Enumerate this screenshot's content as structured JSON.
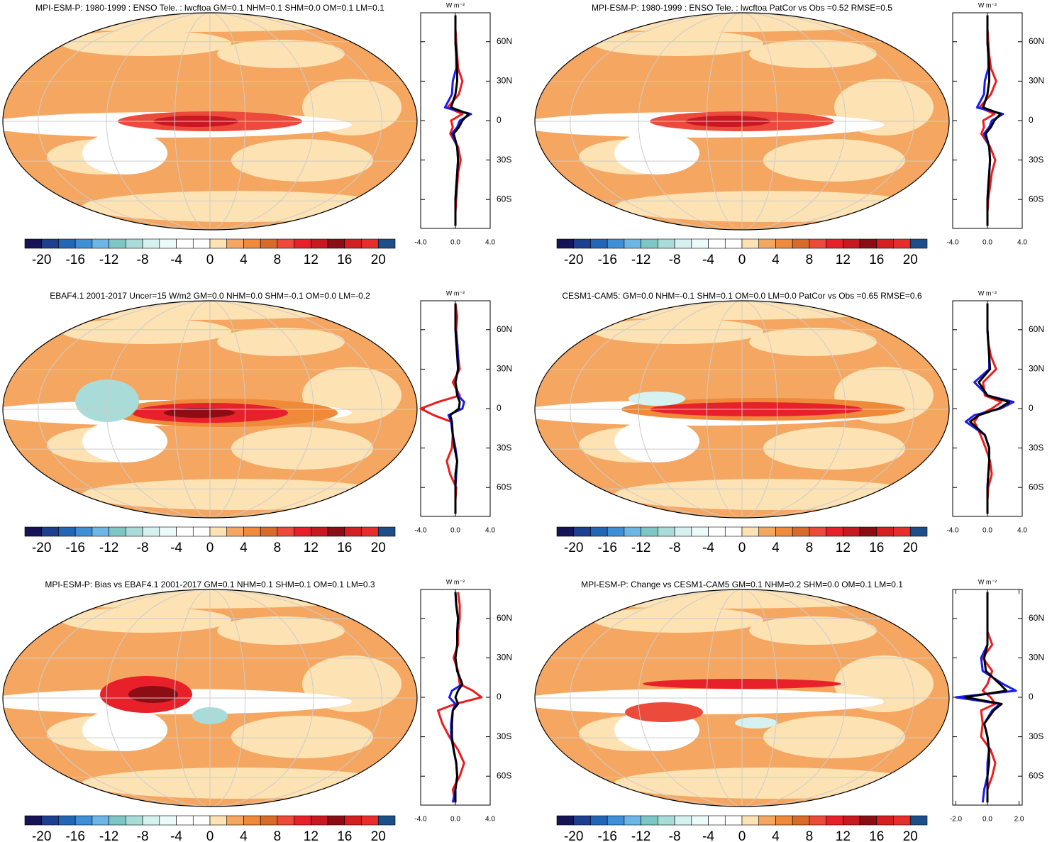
{
  "units": "W m⁻²",
  "colorbar": {
    "lim": [
      -22,
      22
    ],
    "ticks": [
      -20,
      -16,
      -12,
      -8,
      -4,
      0,
      4,
      8,
      12,
      16,
      20
    ],
    "colors": [
      "#141456",
      "#1d3f8f",
      "#2266b8",
      "#3f8fd6",
      "#6cb6e6",
      "#7cc7c4",
      "#a9dcd8",
      "#d5f2f0",
      "#ecfafa",
      "#ffffff",
      "#ffffff",
      "#fde2b4",
      "#f5a761",
      "#ee8a3a",
      "#d96b2a",
      "#ec4a3a",
      "#e8202a",
      "#c81820",
      "#8c0e14",
      "#d42020",
      "#e82d2d",
      "#1c4f8a"
    ]
  },
  "chart_data": [
    {
      "type": "line",
      "title": "MPI-ESM-P: 1980-1999 : ENSO Tele. : lwcftoa GM=0.1 NHM=0.1 SHM=0.0 OM=0.1 LM=0.1",
      "latitudes": [
        -80,
        -70,
        -60,
        -50,
        -40,
        -30,
        -20,
        -10,
        -5,
        0,
        5,
        10,
        20,
        30,
        40,
        50,
        60,
        70,
        80
      ],
      "xlim": [
        -4,
        4
      ],
      "xticks": [
        {
          "value": -4,
          "label": "-4.0"
        },
        {
          "value": 0,
          "label": "0.0"
        },
        {
          "value": 4,
          "label": "4.0"
        }
      ],
      "ylim": [
        -82,
        82
      ],
      "yticks": [
        {
          "value": -60,
          "label": "60S"
        },
        {
          "value": -30,
          "label": "30S"
        },
        0,
        {
          "value": 30,
          "label": "30N"
        },
        {
          "value": 60,
          "label": "60N"
        }
      ],
      "series": [
        {
          "color": "#ee1c1c",
          "values": [
            0,
            0,
            0.1,
            0.2,
            0.3,
            0.6,
            0.3,
            -0.6,
            -0.3,
            -0.5,
            0.8,
            -0.9,
            0.4,
            0.8,
            0.3,
            0.2,
            0.1,
            0,
            0
          ]
        },
        {
          "color": "#1c1cee",
          "values": [
            0,
            0,
            0,
            0.1,
            0.2,
            0.3,
            0.2,
            -0.4,
            0.2,
            0.5,
            1.8,
            -1.2,
            -0.4,
            -0.3,
            0.1,
            0.1,
            0,
            0,
            0
          ]
        },
        {
          "color": "#000000",
          "values": [
            0,
            0,
            0,
            0.1,
            0.2,
            0.3,
            0.2,
            -0.2,
            0.4,
            0.8,
            1.5,
            -0.5,
            0,
            0.2,
            0.2,
            0.1,
            0,
            0,
            0
          ]
        }
      ]
    },
    {
      "type": "line",
      "title": "MPI-ESM-P: 1980-1999 : ENSO Tele. : lwcftoa PatCor vs Obs =0.52 RMSE=0.5",
      "latitudes": [
        -80,
        -70,
        -60,
        -50,
        -40,
        -30,
        -20,
        -10,
        -5,
        0,
        5,
        10,
        20,
        30,
        40,
        50,
        60,
        70,
        80
      ],
      "xlim": [
        -4,
        4
      ],
      "xticks": [
        {
          "value": -4,
          "label": "-4.0"
        },
        {
          "value": 0,
          "label": "0.0"
        },
        {
          "value": 4,
          "label": "4.0"
        }
      ],
      "ylim": [
        -82,
        82
      ],
      "yticks": [
        {
          "value": -60,
          "label": "60S"
        },
        {
          "value": -30,
          "label": "30S"
        },
        0,
        {
          "value": 30,
          "label": "30N"
        },
        {
          "value": 60,
          "label": "60N"
        }
      ],
      "series": [
        {
          "color": "#ee1c1c",
          "values": [
            0,
            0,
            0.1,
            0.3,
            0.5,
            0.9,
            0.3,
            -0.7,
            -0.4,
            -0.5,
            0.8,
            -0.9,
            0.4,
            1,
            0.4,
            0.2,
            0.1,
            0,
            0
          ]
        },
        {
          "color": "#1c1cee",
          "values": [
            0,
            0,
            0,
            0.1,
            0.2,
            0.3,
            0.2,
            -0.4,
            0.2,
            0.5,
            1.8,
            -1.2,
            -0.4,
            -0.3,
            0.1,
            0.1,
            0,
            0,
            0
          ]
        },
        {
          "color": "#000000",
          "values": [
            0,
            0,
            0,
            0.1,
            0.2,
            0.3,
            0.2,
            -0.2,
            0.4,
            0.8,
            1.5,
            -0.5,
            0,
            0.2,
            0.2,
            0.1,
            0,
            0,
            0
          ]
        }
      ]
    },
    {
      "type": "line",
      "title": "EBAF4.1 2001-2017 Uncer=15 W/m2 GM=0.0 NHM=0.0 SHM=-0.1 OM=0.0 LM=-0.2",
      "latitudes": [
        -80,
        -70,
        -60,
        -50,
        -40,
        -30,
        -20,
        -10,
        -5,
        0,
        5,
        10,
        20,
        30,
        40,
        50,
        60,
        70,
        80
      ],
      "xlim": [
        -4,
        4
      ],
      "xticks": [
        {
          "value": -4,
          "label": "-4.0"
        },
        {
          "value": 0,
          "label": "0.0"
        },
        {
          "value": 4,
          "label": "4.0"
        }
      ],
      "ylim": [
        -82,
        82
      ],
      "yticks": [
        {
          "value": -60,
          "label": "60S"
        },
        {
          "value": -30,
          "label": "30S"
        },
        0,
        {
          "value": 30,
          "label": "30N"
        },
        {
          "value": 60,
          "label": "60N"
        }
      ],
      "series": [
        {
          "color": "#ee1c1c",
          "values": [
            0,
            0,
            0.1,
            -0.6,
            -1,
            -0.4,
            -0.3,
            -0.5,
            -2.5,
            -4,
            -2,
            0.5,
            -0.3,
            0.5,
            0.3,
            0.2,
            0.1,
            0.2,
            0
          ]
        },
        {
          "color": "#1c1cee",
          "values": [
            0,
            0,
            0,
            0.1,
            0.2,
            0,
            -0.3,
            -0.5,
            -0.8,
            0.8,
            1,
            0.3,
            0,
            0.3,
            0.3,
            0.2,
            0,
            0,
            0
          ]
        },
        {
          "color": "#000000",
          "values": [
            0,
            0,
            0,
            0,
            0.2,
            -0.1,
            -0.3,
            -0.4,
            -0.6,
            0.4,
            0.5,
            0.2,
            0,
            0.3,
            0.2,
            0.1,
            0,
            0,
            0
          ]
        }
      ]
    },
    {
      "type": "line",
      "title": "CESM1-CAM5: GM=0.0 NHM=-0.1 SHM=0.1 OM=0.0 LM=0.0 PatCor vs Obs =0.65 RMSE=0.6",
      "latitudes": [
        -80,
        -70,
        -60,
        -50,
        -40,
        -30,
        -20,
        -10,
        -5,
        0,
        5,
        10,
        20,
        30,
        40,
        50,
        60,
        70,
        80
      ],
      "xlim": [
        -4,
        4
      ],
      "xticks": [
        {
          "value": -4,
          "label": "-4.0"
        },
        {
          "value": 0,
          "label": "0.0"
        },
        {
          "value": 4,
          "label": "4.0"
        }
      ],
      "ylim": [
        -82,
        82
      ],
      "yticks": [
        {
          "value": -60,
          "label": "60S"
        },
        {
          "value": -30,
          "label": "30S"
        },
        0,
        {
          "value": 30,
          "label": "30N"
        },
        {
          "value": 60,
          "label": "60N"
        }
      ],
      "series": [
        {
          "color": "#ee1c1c",
          "values": [
            0,
            0,
            0.1,
            0.5,
            0.3,
            -0.2,
            -0.8,
            -1.5,
            -1,
            0.5,
            1.6,
            -0.3,
            -0.5,
            1,
            0.4,
            0.1,
            0,
            0,
            0
          ]
        },
        {
          "color": "#1c1cee",
          "values": [
            0,
            0,
            0,
            0.1,
            0.2,
            0.2,
            -0.3,
            -2.5,
            -1.5,
            1.5,
            3,
            0,
            -1.5,
            0.2,
            0.2,
            0.1,
            0,
            0,
            0
          ]
        },
        {
          "color": "#000000",
          "values": [
            0,
            0,
            0,
            0.1,
            0.2,
            0.2,
            -0.3,
            -2,
            -1,
            1.3,
            2.5,
            0,
            -1,
            0.3,
            0.2,
            0.1,
            0,
            0,
            0
          ]
        }
      ]
    },
    {
      "type": "line",
      "title": "MPI-ESM-P: Bias vs EBAF4.1 2001-2017 GM=0.1 NHM=0.1 SHM=0.1 OM=0.1 LM=0.3",
      "latitudes": [
        -80,
        -70,
        -60,
        -50,
        -40,
        -30,
        -20,
        -10,
        -5,
        0,
        5,
        10,
        20,
        30,
        40,
        50,
        60,
        70,
        80
      ],
      "xlim": [
        -4,
        4
      ],
      "xticks": [
        {
          "value": -4,
          "label": "-4.0"
        },
        {
          "value": 0,
          "label": "0.0"
        },
        {
          "value": 4,
          "label": "4.0"
        }
      ],
      "ylim": [
        -82,
        82
      ],
      "yticks": [
        {
          "value": -60,
          "label": "60S"
        },
        {
          "value": -30,
          "label": "30S"
        },
        0,
        {
          "value": 30,
          "label": "30N"
        },
        {
          "value": 60,
          "label": "60N"
        }
      ],
      "series": [
        {
          "color": "#ee1c1c",
          "values": [
            0,
            -0.3,
            0.5,
            1,
            0.3,
            -0.7,
            -1.5,
            -2,
            0,
            3,
            2,
            0.5,
            0.3,
            -0.2,
            0.3,
            0.3,
            0.5,
            0.5,
            0.3
          ]
        },
        {
          "color": "#1c1cee",
          "values": [
            -0.3,
            0,
            0.2,
            0.1,
            -0.2,
            -0.5,
            -0.5,
            -0.3,
            0,
            -0.7,
            -0.4,
            0.8,
            0.2,
            0,
            0.2,
            0.2,
            0.3,
            0.1,
            0
          ]
        },
        {
          "color": "#000000",
          "values": [
            0,
            0,
            0.2,
            0.1,
            -0.2,
            -0.4,
            -0.4,
            -0.3,
            0.3,
            0,
            0.3,
            0.8,
            0.2,
            0,
            0.2,
            0.2,
            0.3,
            0.1,
            0
          ]
        }
      ]
    },
    {
      "type": "line",
      "title": "MPI-ESM-P: Change vs CESM1-CAM5 GM=0.1 NHM=0.2 SHM=0.0 OM=0.1 LM=0.1",
      "latitudes": [
        -80,
        -70,
        -60,
        -50,
        -40,
        -30,
        -20,
        -10,
        -5,
        0,
        5,
        10,
        20,
        30,
        40,
        50,
        60,
        70,
        80
      ],
      "xlim": [
        -2.2,
        2.2
      ],
      "xticks": [
        {
          "value": -2,
          "label": "-2.0"
        },
        {
          "value": 0,
          "label": "0.0"
        },
        {
          "value": 2,
          "label": "2.0"
        }
      ],
      "ylim": [
        -82,
        82
      ],
      "yticks": [
        {
          "value": -60,
          "label": "60S"
        },
        {
          "value": -30,
          "label": "30S"
        },
        0,
        {
          "value": 30,
          "label": "30N"
        },
        {
          "value": 60,
          "label": "60N"
        }
      ],
      "series": [
        {
          "color": "#ee1c1c",
          "values": [
            0,
            0,
            0.3,
            0.5,
            0.2,
            -0.4,
            -0.3,
            -0.4,
            0.5,
            0.2,
            -0.3,
            0,
            0.3,
            -0.3,
            0.3,
            0,
            0,
            0,
            0
          ]
        },
        {
          "color": "#1c1cee",
          "values": [
            -0.3,
            -0.2,
            0,
            0,
            0.1,
            0,
            -0.2,
            0.3,
            0.8,
            -2,
            1.8,
            1,
            -0.3,
            -0.4,
            0,
            0,
            0,
            0,
            0
          ]
        },
        {
          "color": "#000000",
          "values": [
            0,
            0,
            0,
            0.1,
            0.1,
            0,
            -0.2,
            0.4,
            0.9,
            -1.4,
            1.2,
            0.8,
            -0.1,
            -0.2,
            0,
            0,
            0,
            0,
            0
          ]
        }
      ]
    }
  ]
}
